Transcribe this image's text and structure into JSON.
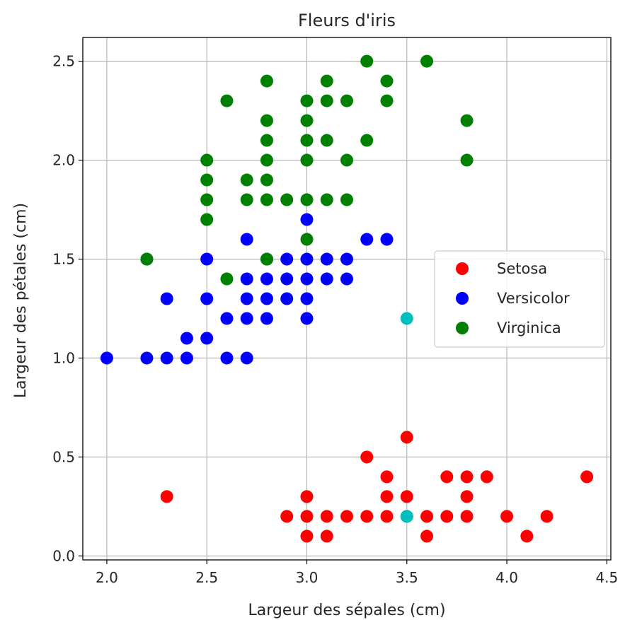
{
  "chart_data": {
    "type": "scatter",
    "title": "Fleurs d'iris",
    "xlabel": "Largeur des sépales (cm)",
    "ylabel": "Largeur des pétales (cm)",
    "xlim": [
      1.88,
      4.52
    ],
    "ylim": [
      -0.02,
      2.62
    ],
    "xticks": [
      2.0,
      2.5,
      3.0,
      3.5,
      4.0,
      4.5
    ],
    "xtick_labels": [
      "2.0",
      "2.5",
      "3.0",
      "3.5",
      "4.0",
      "4.5"
    ],
    "yticks": [
      0.0,
      0.5,
      1.0,
      1.5,
      2.0,
      2.5
    ],
    "ytick_labels": [
      "0.0",
      "0.5",
      "1.0",
      "1.5",
      "2.0",
      "2.5"
    ],
    "grid": true,
    "legend_placement": "center-right",
    "series": [
      {
        "name": "Setosa",
        "color": "#ff0000",
        "points": [
          [
            2.3,
            0.3
          ],
          [
            2.9,
            0.2
          ],
          [
            3.0,
            0.1
          ],
          [
            3.0,
            0.2
          ],
          [
            3.0,
            0.3
          ],
          [
            3.1,
            0.1
          ],
          [
            3.1,
            0.2
          ],
          [
            3.2,
            0.2
          ],
          [
            3.3,
            0.2
          ],
          [
            3.3,
            0.5
          ],
          [
            3.4,
            0.2
          ],
          [
            3.4,
            0.3
          ],
          [
            3.4,
            0.4
          ],
          [
            3.5,
            0.2
          ],
          [
            3.5,
            0.3
          ],
          [
            3.5,
            0.6
          ],
          [
            3.6,
            0.1
          ],
          [
            3.6,
            0.2
          ],
          [
            3.7,
            0.2
          ],
          [
            3.7,
            0.4
          ],
          [
            3.8,
            0.2
          ],
          [
            3.8,
            0.3
          ],
          [
            3.8,
            0.4
          ],
          [
            3.9,
            0.4
          ],
          [
            4.0,
            0.2
          ],
          [
            4.1,
            0.1
          ],
          [
            4.2,
            0.2
          ],
          [
            4.4,
            0.4
          ]
        ]
      },
      {
        "name": "Versicolor",
        "color": "#0000ff",
        "points": [
          [
            2.0,
            1.0
          ],
          [
            2.2,
            1.0
          ],
          [
            2.2,
            1.5
          ],
          [
            2.3,
            1.0
          ],
          [
            2.3,
            1.3
          ],
          [
            2.4,
            1.0
          ],
          [
            2.4,
            1.1
          ],
          [
            2.5,
            1.1
          ],
          [
            2.5,
            1.3
          ],
          [
            2.5,
            1.5
          ],
          [
            2.6,
            1.0
          ],
          [
            2.6,
            1.2
          ],
          [
            2.7,
            1.0
          ],
          [
            2.7,
            1.2
          ],
          [
            2.7,
            1.3
          ],
          [
            2.7,
            1.4
          ],
          [
            2.7,
            1.6
          ],
          [
            2.8,
            1.2
          ],
          [
            2.8,
            1.3
          ],
          [
            2.8,
            1.4
          ],
          [
            2.8,
            1.5
          ],
          [
            2.9,
            1.3
          ],
          [
            2.9,
            1.4
          ],
          [
            2.9,
            1.5
          ],
          [
            3.0,
            1.2
          ],
          [
            3.0,
            1.3
          ],
          [
            3.0,
            1.4
          ],
          [
            3.0,
            1.5
          ],
          [
            3.0,
            1.7
          ],
          [
            3.1,
            1.4
          ],
          [
            3.1,
            1.5
          ],
          [
            3.2,
            1.4
          ],
          [
            3.2,
            1.5
          ],
          [
            3.3,
            1.6
          ],
          [
            3.4,
            1.6
          ]
        ]
      },
      {
        "name": "Virginica",
        "color": "#008000",
        "points": [
          [
            2.2,
            1.5
          ],
          [
            2.5,
            1.7
          ],
          [
            2.5,
            1.8
          ],
          [
            2.5,
            1.9
          ],
          [
            2.5,
            2.0
          ],
          [
            2.6,
            1.4
          ],
          [
            2.6,
            2.3
          ],
          [
            2.7,
            1.8
          ],
          [
            2.7,
            1.9
          ],
          [
            2.8,
            1.5
          ],
          [
            2.8,
            1.8
          ],
          [
            2.8,
            1.9
          ],
          [
            2.8,
            2.0
          ],
          [
            2.8,
            2.1
          ],
          [
            2.8,
            2.2
          ],
          [
            2.8,
            2.4
          ],
          [
            2.9,
            1.8
          ],
          [
            3.0,
            1.6
          ],
          [
            3.0,
            1.8
          ],
          [
            3.0,
            2.0
          ],
          [
            3.0,
            2.1
          ],
          [
            3.0,
            2.2
          ],
          [
            3.0,
            2.3
          ],
          [
            3.1,
            1.8
          ],
          [
            3.1,
            2.1
          ],
          [
            3.1,
            2.3
          ],
          [
            3.1,
            2.4
          ],
          [
            3.2,
            1.8
          ],
          [
            3.2,
            2.0
          ],
          [
            3.2,
            2.3
          ],
          [
            3.3,
            2.1
          ],
          [
            3.3,
            2.5
          ],
          [
            3.4,
            2.3
          ],
          [
            3.4,
            2.4
          ],
          [
            3.6,
            2.5
          ],
          [
            3.8,
            2.0
          ],
          [
            3.8,
            2.2
          ]
        ]
      },
      {
        "color": "#00bfbf",
        "points": [
          [
            3.5,
            1.2
          ],
          [
            3.5,
            0.2
          ]
        ]
      }
    ]
  }
}
